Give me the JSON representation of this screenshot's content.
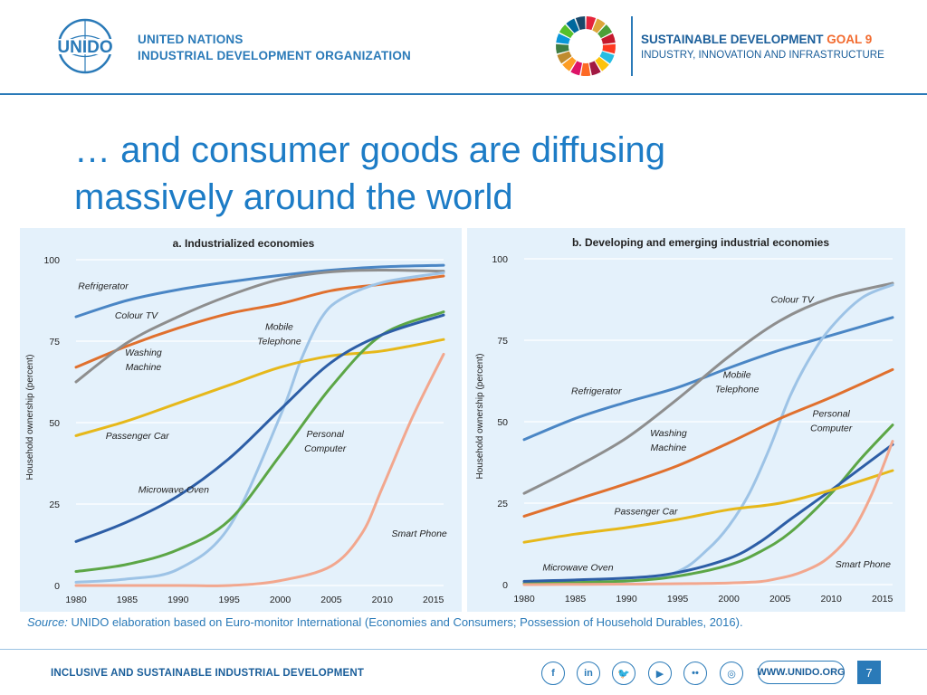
{
  "header": {
    "org_line1": "UNITED NATIONS",
    "org_line2": "INDUSTRIAL DEVELOPMENT ORGANIZATION",
    "logo_text": "UNIDO",
    "sdg_title": "SUSTAINABLE DEVELOPMENT",
    "sdg_goal": "GOAL 9",
    "sdg_subtitle": "INDUSTRY, INNOVATION AND INFRASTRUCTURE",
    "sdg_colors": [
      "#e5243b",
      "#dda63a",
      "#4c9f38",
      "#c5192d",
      "#ff3a21",
      "#26bde2",
      "#fcc30b",
      "#a21942",
      "#fd6925",
      "#dd1367",
      "#fd9d24",
      "#bf8b2e",
      "#3f7e44",
      "#0a97d9",
      "#56c02b",
      "#00689d",
      "#19486a"
    ]
  },
  "title": {
    "line1": "… and consumer goods are diffusing",
    "line2": "massively around the world"
  },
  "chart_data": [
    {
      "type": "line",
      "title": "a. Industrialized economies",
      "ylabel": "Household ownership (percent)",
      "xlabel": "",
      "xlim": [
        1980,
        2016
      ],
      "ylim": [
        0,
        100
      ],
      "yticks": [
        0,
        25,
        50,
        75,
        100
      ],
      "xticks": [
        1980,
        1985,
        1990,
        1995,
        2000,
        2005,
        2010,
        2015
      ],
      "grid": "horizontal",
      "series": [
        {
          "name": "Refrigerator",
          "color": "#4a86c5",
          "x": [
            1980,
            1985,
            1990,
            1995,
            2000,
            2005,
            2010,
            2016
          ],
          "values": [
            82.5,
            87.5,
            90.8,
            93.2,
            95.2,
            96.8,
            97.8,
            98.3
          ]
        },
        {
          "name": "Colour TV",
          "color": "#e0702e",
          "x": [
            1980,
            1985,
            1990,
            1995,
            2000,
            2005,
            2010,
            2016
          ],
          "values": [
            67,
            73.5,
            79,
            83.5,
            86.5,
            90.5,
            92.5,
            95
          ]
        },
        {
          "name": "Washing Machine",
          "color": "#8e8e8e",
          "x": [
            1980,
            1985,
            1990,
            1995,
            2000,
            2005,
            2010,
            2016
          ],
          "values": [
            62.5,
            74.5,
            82.5,
            89,
            94,
            96.3,
            96.8,
            96.5
          ]
        },
        {
          "name": "Mobile Telephone",
          "color": "#9dc3e6",
          "x": [
            1980,
            1985,
            1990,
            1995,
            2000,
            2002,
            2004,
            2006,
            2010,
            2016
          ],
          "values": [
            1,
            2,
            5,
            18,
            52,
            69,
            82,
            88,
            93,
            96
          ]
        },
        {
          "name": "Passenger Car",
          "color": "#e6b81a",
          "x": [
            1980,
            1985,
            1990,
            1995,
            2000,
            2005,
            2010,
            2016
          ],
          "values": [
            46,
            50.5,
            56,
            61.5,
            67,
            70.5,
            72,
            75.5
          ]
        },
        {
          "name": "Personal Computer",
          "color": "#5ca646",
          "x": [
            1980,
            1985,
            1990,
            1995,
            2000,
            2005,
            2010,
            2016
          ],
          "values": [
            4.3,
            6.5,
            11,
            20,
            40,
            61,
            77,
            84
          ]
        },
        {
          "name": "Microwave Oven",
          "color": "#2d5ea6",
          "x": [
            1980,
            1985,
            1990,
            1995,
            2000,
            2005,
            2010,
            2016
          ],
          "values": [
            13.5,
            19.5,
            27.5,
            39,
            54,
            68.5,
            77,
            83
          ]
        },
        {
          "name": "Smart Phone",
          "color": "#f2a78e",
          "x": [
            1980,
            1990,
            1995,
            2000,
            2005,
            2008,
            2010,
            2013,
            2016
          ],
          "values": [
            0,
            0,
            0,
            1.5,
            6,
            16,
            30,
            52,
            71
          ]
        }
      ],
      "annotations": [
        {
          "text": [
            "Refrigerator"
          ],
          "x": 1980.2,
          "y": 91
        },
        {
          "text": [
            "Colour TV"
          ],
          "x": 1983.8,
          "y": 82
        },
        {
          "text": [
            "Mobile",
            "Telephone"
          ],
          "x": 1999.9,
          "y": 78.5
        },
        {
          "text": [
            "Washing",
            "Machine"
          ],
          "x": 1986.6,
          "y": 70.5
        },
        {
          "text": [
            "Passenger Car"
          ],
          "x": 1982.9,
          "y": 45
        },
        {
          "text": [
            "Personal",
            "Computer"
          ],
          "x": 2004.4,
          "y": 45.5
        },
        {
          "text": [
            "Microwave Oven"
          ],
          "x": 1986.1,
          "y": 28.5
        },
        {
          "text": [
            "Smart Phone"
          ],
          "x": 2010.9,
          "y": 15
        }
      ]
    },
    {
      "type": "line",
      "title": "b. Developing and emerging industrial economies",
      "ylabel": "Household ownership (percent)",
      "xlabel": "",
      "xlim": [
        1980,
        2016
      ],
      "ylim": [
        0,
        100
      ],
      "yticks": [
        0,
        25,
        50,
        75,
        100
      ],
      "xticks": [
        1980,
        1985,
        1990,
        1995,
        2000,
        2005,
        2010,
        2015
      ],
      "grid": "horizontal",
      "series": [
        {
          "name": "Refrigerator",
          "color": "#4a86c5",
          "x": [
            1980,
            1985,
            1990,
            1995,
            2000,
            2005,
            2010,
            2016
          ],
          "values": [
            44.5,
            51,
            56,
            60.5,
            66.5,
            72,
            76.5,
            82
          ]
        },
        {
          "name": "Colour TV",
          "color": "#8e8e8e",
          "x": [
            1980,
            1985,
            1990,
            1995,
            2000,
            2005,
            2010,
            2016
          ],
          "values": [
            28,
            36,
            45,
            57,
            70,
            81,
            88,
            92.5
          ]
        },
        {
          "name": "Mobile Telephone",
          "color": "#9dc3e6",
          "x": [
            1980,
            1990,
            1995,
            1998,
            2000,
            2002,
            2004,
            2006,
            2008,
            2010,
            2013,
            2016
          ],
          "values": [
            0.5,
            1,
            4,
            11,
            18,
            28,
            42,
            58,
            70,
            79,
            88,
            92
          ]
        },
        {
          "name": "Washing Machine",
          "color": "#e0702e",
          "x": [
            1980,
            1985,
            1990,
            1995,
            2000,
            2005,
            2010,
            2016
          ],
          "values": [
            21,
            26,
            31,
            36.5,
            43.5,
            51,
            57.5,
            66
          ]
        },
        {
          "name": "Personal Computer",
          "color": "#5ca646",
          "x": [
            1980,
            1990,
            1995,
            2000,
            2003,
            2006,
            2010,
            2013,
            2016
          ],
          "values": [
            0.3,
            1.1,
            2.6,
            6,
            10,
            16,
            28,
            39,
            49
          ]
        },
        {
          "name": "Microwave Oven",
          "color": "#2d5ea6",
          "x": [
            1980,
            1990,
            1995,
            2000,
            2003,
            2006,
            2010,
            2013,
            2016
          ],
          "values": [
            1,
            2,
            3.7,
            8,
            13,
            20,
            29,
            36,
            43
          ]
        },
        {
          "name": "Passenger Car",
          "color": "#e6b81a",
          "x": [
            1980,
            1985,
            1990,
            1995,
            2000,
            2005,
            2010,
            2016
          ],
          "values": [
            13,
            15.5,
            17.5,
            20,
            23,
            25,
            29,
            35
          ]
        },
        {
          "name": "Smart Phone",
          "color": "#f2a78e",
          "x": [
            1980,
            2000,
            2005,
            2008,
            2010,
            2012,
            2014,
            2016
          ],
          "values": [
            0,
            0.5,
            2,
            5,
            9,
            16,
            28,
            44
          ]
        }
      ],
      "annotations": [
        {
          "text": [
            "Colour TV"
          ],
          "x": 2004.1,
          "y": 86.5
        },
        {
          "text": [
            "Mobile",
            "Telephone"
          ],
          "x": 2000.8,
          "y": 63.5
        },
        {
          "text": [
            "Refrigerator"
          ],
          "x": 1984.6,
          "y": 58.5
        },
        {
          "text": [
            "Personal",
            "Computer"
          ],
          "x": 2010,
          "y": 51.5
        },
        {
          "text": [
            "Washing",
            "Machine"
          ],
          "x": 1994.1,
          "y": 45.5
        },
        {
          "text": [
            "Passenger Car"
          ],
          "x": 1988.8,
          "y": 21.5
        },
        {
          "text": [
            "Microwave Oven"
          ],
          "x": 1981.8,
          "y": 4.3
        },
        {
          "text": [
            "Smart Phone"
          ],
          "x": 2010.4,
          "y": 5.3
        }
      ]
    }
  ],
  "source": {
    "label": "Source:",
    "text": "UNIDO elaboration based on Euro-monitor International (Economies and Consumers; Possession of Household Durables, 2016)."
  },
  "footer": {
    "tagline": "INCLUSIVE AND SUSTAINABLE INDUSTRIAL DEVELOPMENT",
    "social": [
      {
        "icon": "facebook-icon",
        "glyph": "f"
      },
      {
        "icon": "linkedin-icon",
        "glyph": "in"
      },
      {
        "icon": "twitter-icon",
        "glyph": "🐦"
      },
      {
        "icon": "youtube-icon",
        "glyph": "▶"
      },
      {
        "icon": "flickr-icon",
        "glyph": "••"
      },
      {
        "icon": "instagram-icon",
        "glyph": "◎"
      }
    ],
    "website": "WWW.UNIDO.ORG",
    "page_number": "7"
  }
}
